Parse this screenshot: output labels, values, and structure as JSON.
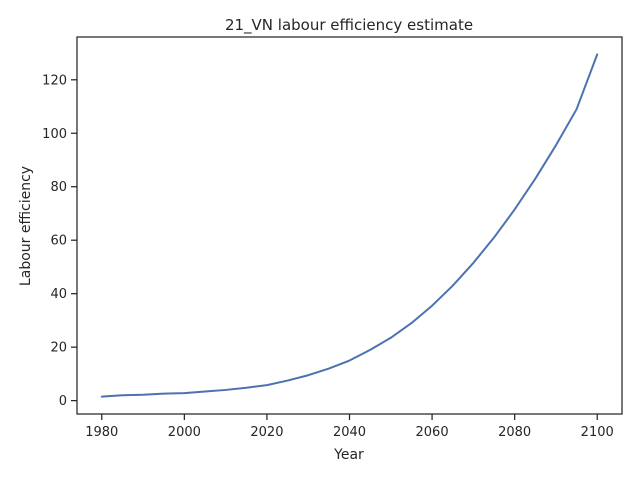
{
  "chart_data": {
    "type": "line",
    "title": "21_VN labour efficiency estimate",
    "xlabel": "Year",
    "ylabel": "Labour efficiency",
    "xlim": [
      1974,
      2106
    ],
    "ylim": [
      -5,
      136
    ],
    "xticks": [
      1980,
      2000,
      2020,
      2040,
      2060,
      2080,
      2100
    ],
    "yticks": [
      0,
      20,
      40,
      60,
      80,
      100,
      120
    ],
    "grid": false,
    "legend": "none",
    "series": [
      {
        "color": "#4c72b0",
        "x": [
          1980,
          1985,
          1990,
          1995,
          2000,
          2005,
          2010,
          2015,
          2020,
          2025,
          2030,
          2035,
          2040,
          2045,
          2050,
          2055,
          2060,
          2065,
          2070,
          2075,
          2080,
          2085,
          2090,
          2095,
          2100
        ],
        "y": [
          1.5,
          2.0,
          2.2,
          2.6,
          2.8,
          3.4,
          4.0,
          4.8,
          5.8,
          7.5,
          9.5,
          12.0,
          15.0,
          19.0,
          23.5,
          29.0,
          35.5,
          43.0,
          51.5,
          61.0,
          71.5,
          83.0,
          95.5,
          109.0,
          129.5
        ]
      }
    ]
  }
}
